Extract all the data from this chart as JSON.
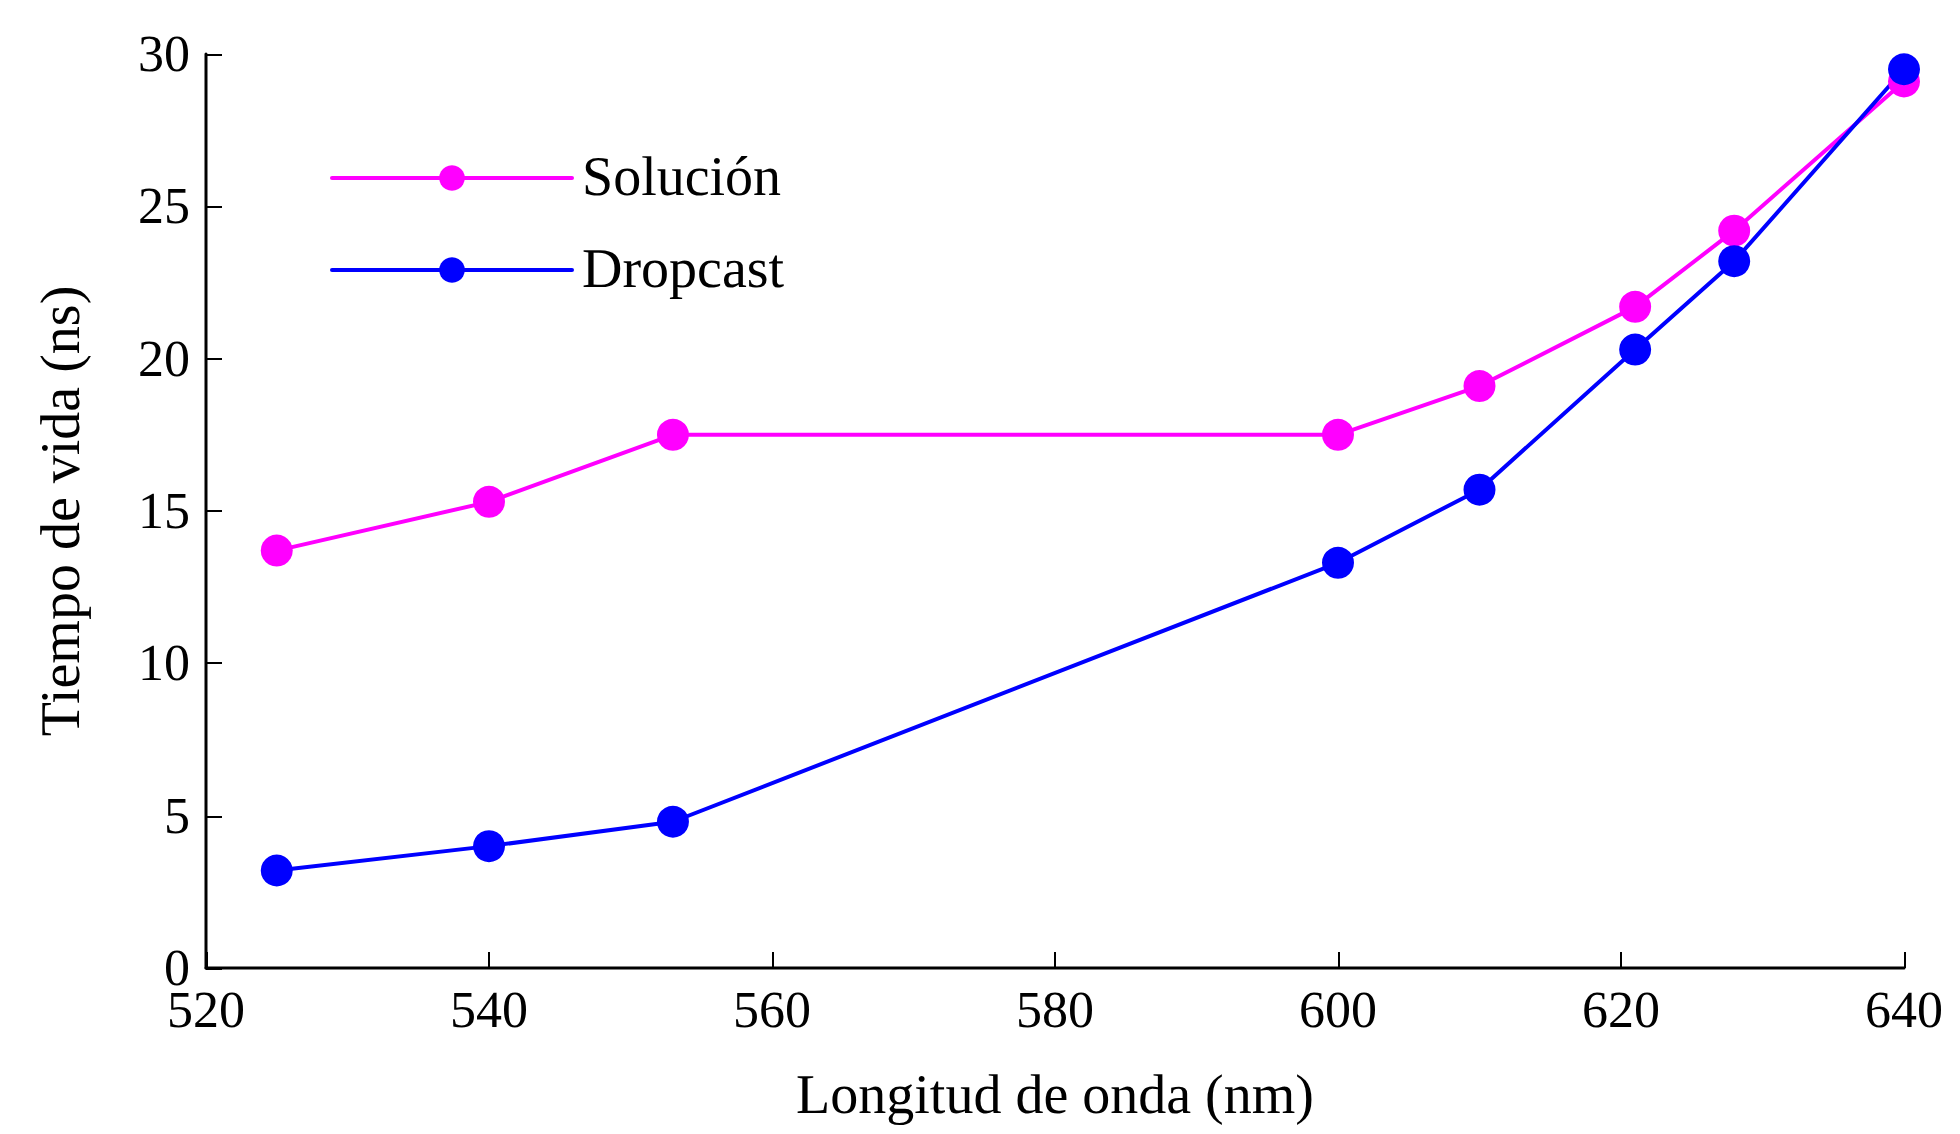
{
  "chart_data": {
    "type": "line",
    "xlabel": "Longitud de onda (nm)",
    "ylabel": "Tiempo de vida (ns)",
    "x": [
      525,
      540,
      553,
      600,
      610,
      621,
      628,
      640
    ],
    "series": [
      {
        "name": "Solución",
        "color": "#ff00ff",
        "values": [
          13.7,
          15.3,
          17.5,
          17.5,
          19.1,
          21.7,
          24.2,
          29.1
        ]
      },
      {
        "name": "Dropcast",
        "color": "#0000ff",
        "values": [
          3.2,
          4.0,
          4.8,
          13.3,
          15.7,
          20.3,
          23.2,
          29.5
        ]
      }
    ],
    "xlim": [
      520,
      640
    ],
    "xticks": [
      520,
      540,
      560,
      580,
      600,
      620,
      640
    ],
    "ylim": [
      0,
      30
    ],
    "yticks": [
      0,
      5,
      10,
      15,
      20,
      25,
      30
    ],
    "grid": false,
    "legend": "top left",
    "marker": "circle",
    "line_style": "solid"
  }
}
